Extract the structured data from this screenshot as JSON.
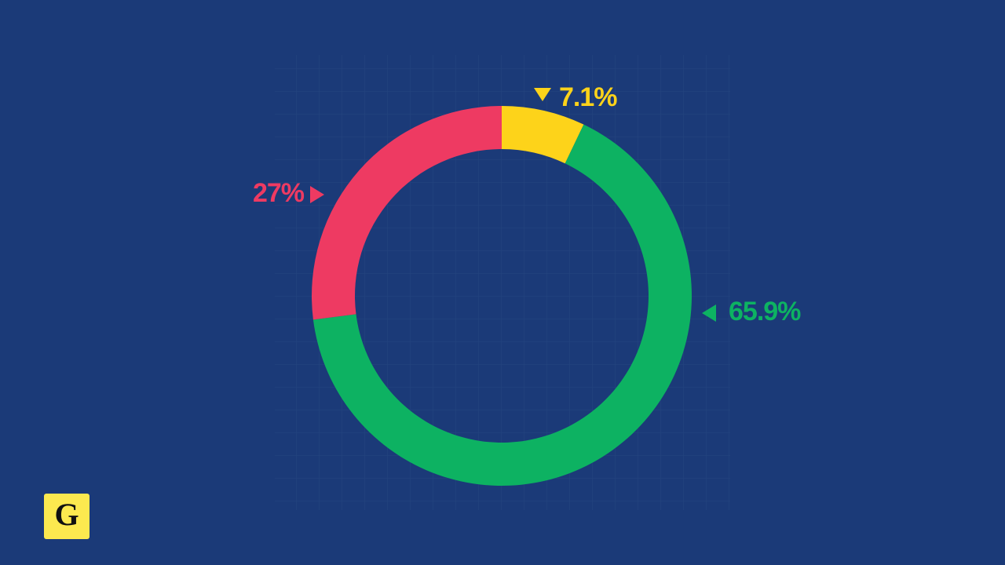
{
  "chart_data": {
    "type": "pie",
    "donut": true,
    "categories": [
      null,
      null,
      null
    ],
    "values": [
      7.1,
      65.9,
      27
    ],
    "value_labels": [
      "7.1%",
      "65.9%",
      "27%"
    ],
    "colors": [
      "#fdd31a",
      "#0db262",
      "#ee3a62"
    ]
  },
  "logo": "G"
}
